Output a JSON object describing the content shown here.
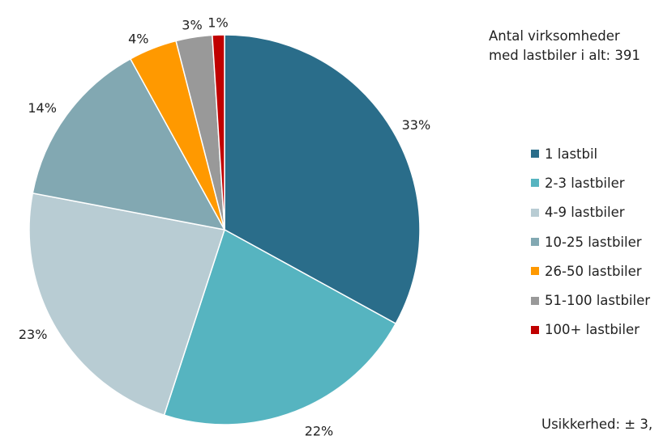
{
  "chart_data": {
    "type": "pie",
    "title": "",
    "categories": [
      "1 lastbil",
      "2-3 lastbiler",
      "4-9 lastbiler",
      "10-25 lastbiler",
      "26-50 lastbiler",
      "51-100 lastbiler",
      "100+ lastbiler"
    ],
    "values": [
      33,
      22,
      23,
      14,
      4,
      3,
      1
    ],
    "labels": [
      "33%",
      "22%",
      "23%",
      "14%",
      "4%",
      "3%",
      "1%"
    ],
    "colors": [
      "#2a6d8a",
      "#56b4c0",
      "#b8ccd3",
      "#82a8b2",
      "#ff9900",
      "#999999",
      "#c00000"
    ],
    "start": "top, clockwise",
    "legend_position": "right"
  },
  "note": {
    "line1": "Antal virksomheder",
    "line2": "med lastbiler i alt: 391"
  },
  "uncertainty": "Usikkerhed: ± 3,"
}
